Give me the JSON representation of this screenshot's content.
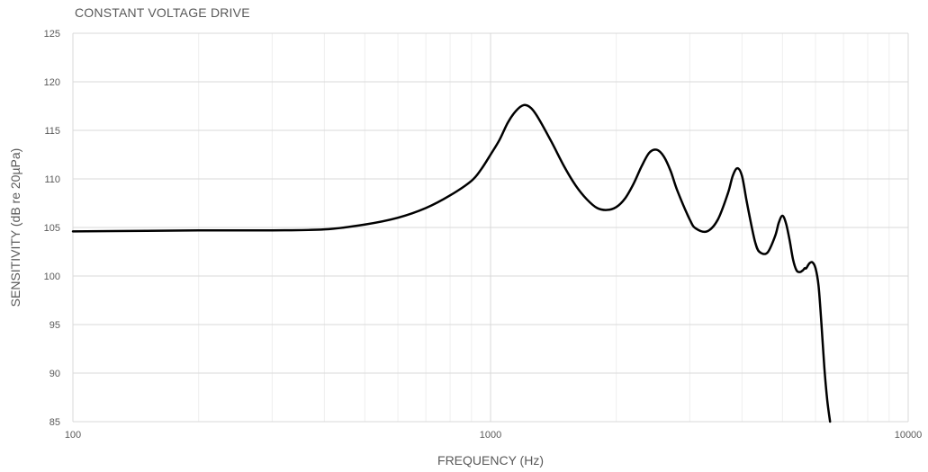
{
  "chart_data": {
    "type": "line",
    "title": "CONSTANT VOLTAGE DRIVE",
    "xlabel": "FREQUENCY (Hz)",
    "ylabel": "SENSITIVITY (dB re 20µPa)",
    "xscale": "log",
    "xlim": [
      100,
      10000
    ],
    "ylim": [
      85,
      125
    ],
    "x_ticks": [
      100,
      1000,
      10000
    ],
    "y_ticks": [
      85,
      90,
      95,
      100,
      105,
      110,
      115,
      120,
      125
    ],
    "grid": true,
    "series": [
      {
        "x": [
          100,
          150,
          200,
          300,
          400,
          500,
          600,
          700,
          800,
          900,
          950,
          1000,
          1050,
          1100,
          1150,
          1200,
          1250,
          1300,
          1400,
          1500,
          1600,
          1700,
          1800,
          1900,
          2000,
          2100,
          2200,
          2300,
          2400,
          2500,
          2600,
          2700,
          2800,
          3000,
          3100,
          3300,
          3500,
          3700,
          3800,
          3900,
          4000,
          4100,
          4200,
          4300,
          4400,
          4600,
          4800,
          4900,
          5000,
          5100,
          5200,
          5300,
          5400,
          5500,
          5600,
          5650,
          5700,
          5800,
          5900,
          6000,
          6100,
          6200,
          6300,
          6400,
          6500
        ],
        "y": [
          104.6,
          104.65,
          104.7,
          104.7,
          104.8,
          105.3,
          106.0,
          107.0,
          108.3,
          109.8,
          111.0,
          112.5,
          114.0,
          115.8,
          117.0,
          117.6,
          117.3,
          116.3,
          113.8,
          111.3,
          109.3,
          107.9,
          107.0,
          106.8,
          107.1,
          108.0,
          109.5,
          111.3,
          112.7,
          113.0,
          112.3,
          110.8,
          108.8,
          105.8,
          104.9,
          104.6,
          105.8,
          108.5,
          110.3,
          111.1,
          110.3,
          107.8,
          105.5,
          103.5,
          102.5,
          102.4,
          104.1,
          105.5,
          106.2,
          105.4,
          103.7,
          101.7,
          100.6,
          100.4,
          100.6,
          100.8,
          100.8,
          101.3,
          101.4,
          100.8,
          99.0,
          95.0,
          90.5,
          87.2,
          85.0
        ]
      }
    ]
  }
}
